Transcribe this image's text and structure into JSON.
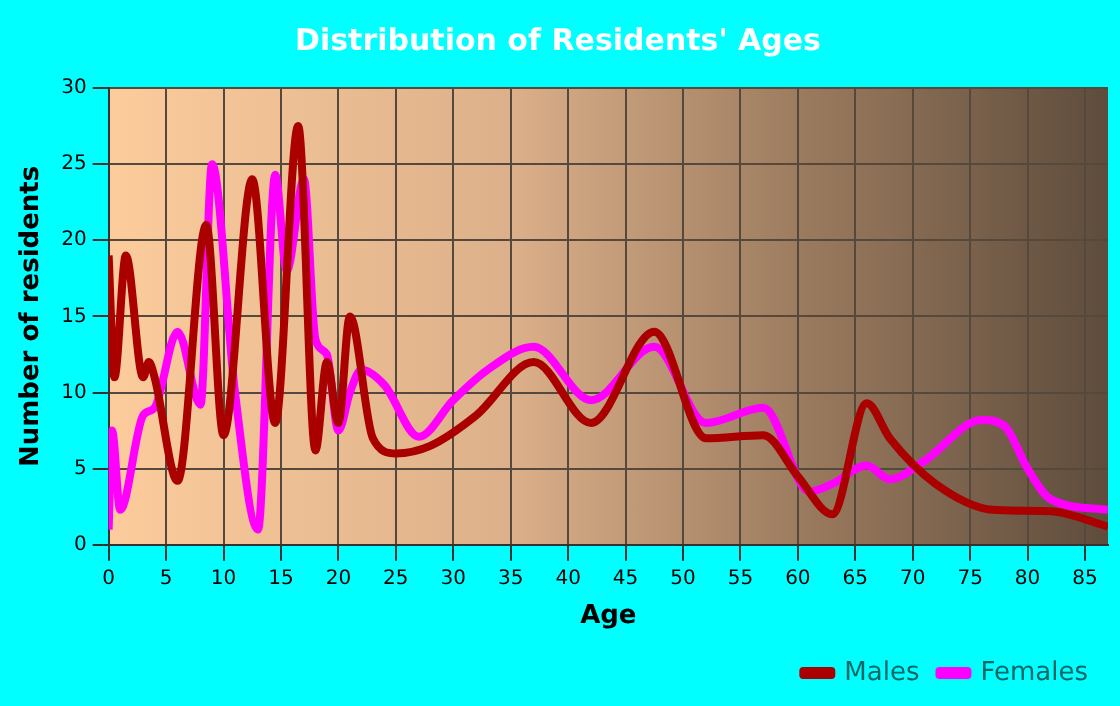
{
  "chart_data": {
    "type": "line",
    "title": "Distribution of Residents' Ages",
    "xlabel": "Age",
    "ylabel": "Number of residents",
    "xlim": [
      0,
      87
    ],
    "xticks": [
      0,
      5,
      10,
      15,
      20,
      25,
      30,
      35,
      40,
      45,
      50,
      55,
      60,
      65,
      70,
      75,
      80,
      85
    ],
    "ylim": [
      0,
      30
    ],
    "yticks": [
      0,
      5,
      10,
      15,
      20,
      25,
      30
    ],
    "grid": true,
    "legend": "bottom right",
    "marker": "none",
    "series": [
      {
        "name": "Males",
        "color": "#aa0000",
        "x": [
          0,
          0.5,
          1.5,
          3,
          3.5,
          4,
          6,
          8.5,
          10,
          12.5,
          14.5,
          16.5,
          18,
          19,
          20,
          21,
          23,
          25,
          28,
          32,
          37,
          42,
          47.5,
          52,
          57,
          60,
          63,
          66,
          68,
          72,
          77,
          82,
          87
        ],
        "values": [
          19,
          11,
          19,
          11,
          12,
          11,
          4.2,
          21,
          7.2,
          24,
          8,
          27.5,
          6.2,
          12,
          8,
          15,
          7,
          6,
          6.5,
          8.5,
          12,
          8,
          14,
          7,
          7.2,
          4.5,
          2,
          9.3,
          7,
          4,
          2.3,
          2.2,
          1.2
        ]
      },
      {
        "name": "Females",
        "color": "#ff00ff",
        "x": [
          0,
          0.3,
          1,
          3,
          4,
          6,
          8,
          9,
          11,
          13,
          14.5,
          15.5,
          17,
          18,
          19,
          20,
          21,
          22,
          24,
          27,
          30,
          33,
          37,
          42,
          47.5,
          52,
          57,
          61,
          63,
          66,
          68,
          71,
          76,
          78,
          80,
          82,
          87
        ],
        "values": [
          1,
          7.5,
          2.3,
          8.5,
          9,
          14,
          9.2,
          25,
          10,
          1,
          24.3,
          18,
          24,
          13.5,
          12.5,
          7.5,
          10,
          11.5,
          10.5,
          7.1,
          9.5,
          11.5,
          13,
          9.5,
          13,
          8,
          9,
          3.5,
          4,
          5.2,
          4.3,
          5.5,
          8.2,
          7.8,
          5,
          3,
          2.3
        ]
      }
    ]
  }
}
